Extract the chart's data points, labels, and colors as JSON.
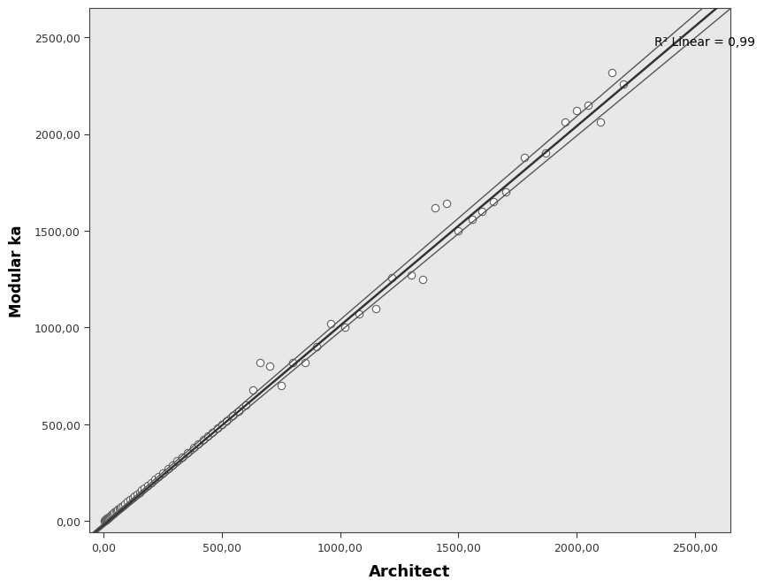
{
  "title": "",
  "xlabel": "Architect",
  "ylabel": "Modular ka",
  "r2_label": "R² Linear = 0,99",
  "xlim": [
    -60,
    2650
  ],
  "ylim": [
    -60,
    2650
  ],
  "xticks": [
    0,
    500,
    1000,
    1500,
    2000,
    2500
  ],
  "yticks": [
    0,
    500,
    1000,
    1500,
    2000,
    2500
  ],
  "plot_bg_color": "#e8e8e8",
  "fig_bg_color": "#ffffff",
  "scatter_x": [
    2,
    3,
    4,
    5,
    6,
    7,
    8,
    9,
    10,
    11,
    12,
    13,
    14,
    15,
    17,
    19,
    22,
    25,
    28,
    32,
    36,
    40,
    45,
    50,
    55,
    60,
    65,
    70,
    75,
    80,
    90,
    100,
    110,
    120,
    130,
    140,
    150,
    160,
    170,
    185,
    200,
    215,
    230,
    250,
    270,
    290,
    310,
    330,
    355,
    380,
    400,
    420,
    440,
    460,
    480,
    500,
    520,
    545,
    570,
    600,
    630,
    660,
    700,
    750,
    800,
    850,
    900,
    960,
    1020,
    1080,
    1150,
    1220,
    1300,
    1350,
    1400,
    1450,
    1500,
    1560,
    1600,
    1650,
    1700,
    1780,
    1870,
    1950,
    2000,
    2050,
    2100,
    2150,
    2200
  ],
  "scatter_y": [
    2,
    3,
    4,
    5,
    6,
    7,
    8,
    9,
    10,
    11,
    12,
    13,
    14,
    15,
    17,
    19,
    22,
    25,
    28,
    32,
    36,
    40,
    45,
    50,
    55,
    60,
    65,
    70,
    75,
    80,
    90,
    100,
    110,
    120,
    130,
    140,
    150,
    160,
    170,
    185,
    200,
    215,
    230,
    250,
    270,
    290,
    310,
    330,
    355,
    380,
    400,
    420,
    440,
    460,
    480,
    500,
    520,
    545,
    570,
    600,
    680,
    820,
    800,
    700,
    820,
    820,
    900,
    1020,
    1000,
    1070,
    1100,
    1260,
    1270,
    1250,
    1620,
    1640,
    1500,
    1560,
    1600,
    1650,
    1700,
    1880,
    1900,
    2060,
    2120,
    2150,
    2060,
    2320,
    2260
  ],
  "reg_slope": 1.03,
  "reg_intercept": -20,
  "ci_upper_slope": 1.05,
  "ci_upper_intercept": -10,
  "ci_lower_slope": 1.01,
  "ci_lower_intercept": -30,
  "marker_size": 6,
  "marker_color": "white",
  "marker_edgecolor": "#606060",
  "line_color": "#333333",
  "ci_color": "#555555"
}
